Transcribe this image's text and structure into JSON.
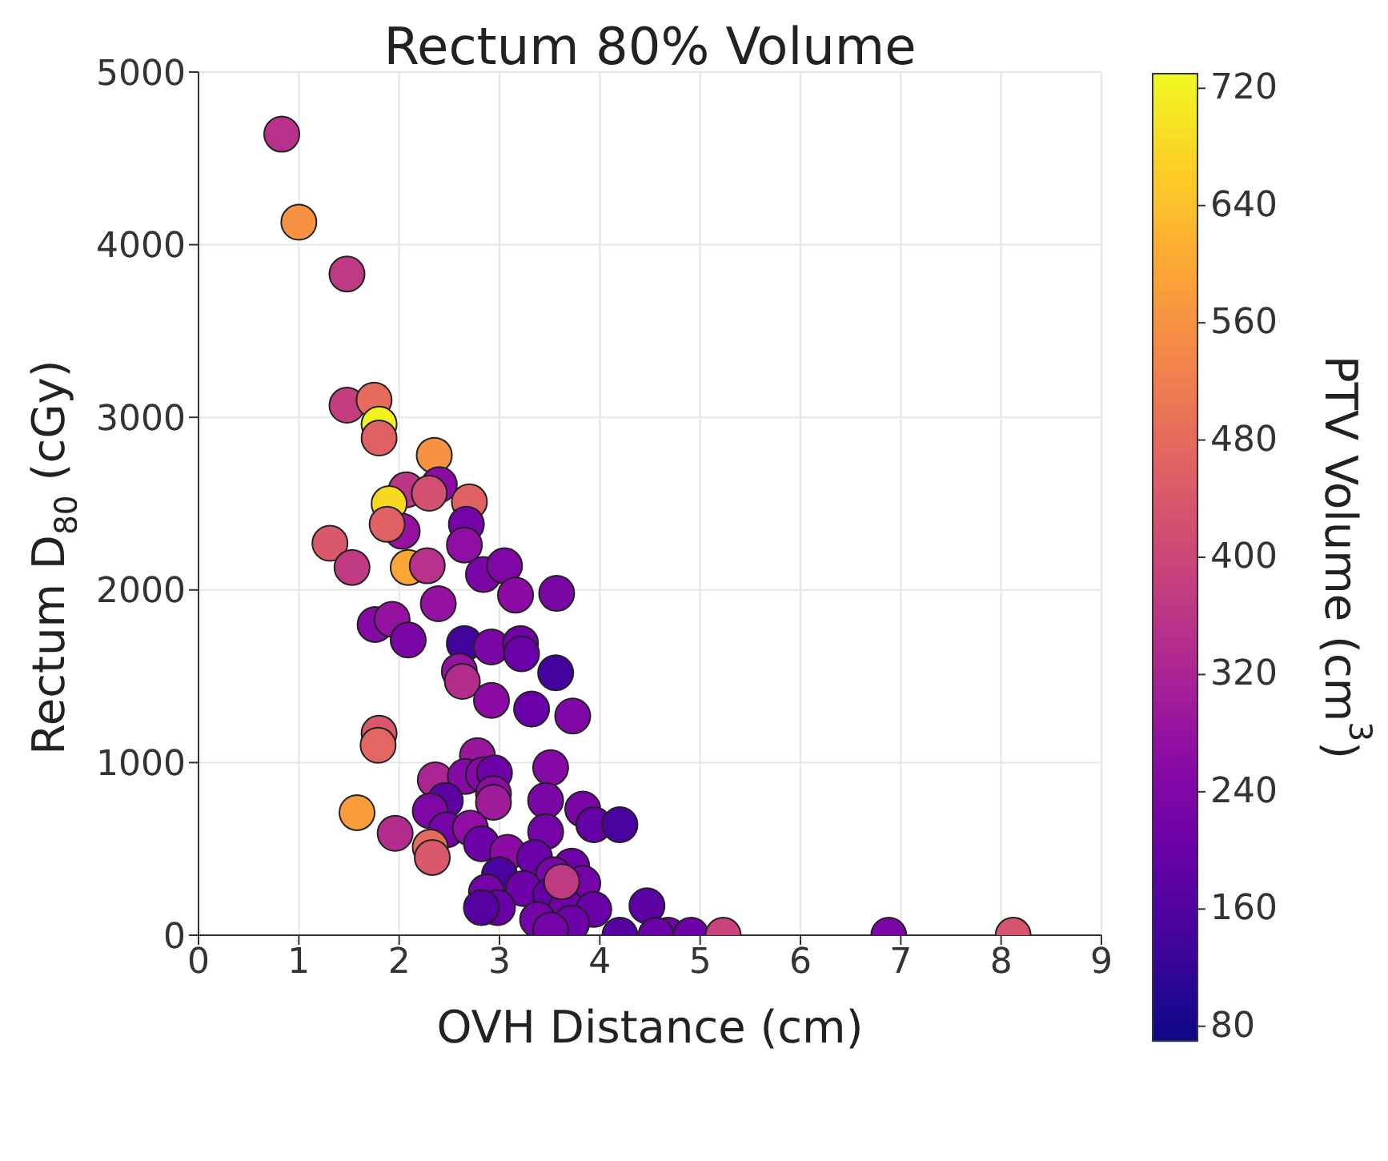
{
  "chart_data": {
    "type": "scatter",
    "title": "Rectum 80% Volume",
    "xlabel": "OVH Distance (cm)",
    "ylabel": "Rectum D$_{80}$ (cGy)",
    "clabel": "PTV Volume (cm$^{3}$)",
    "x": [
      0.83,
      1.0,
      1.48,
      1.48,
      1.75,
      1.8,
      1.8,
      2.35,
      2.4,
      2.07,
      2.3,
      2.7,
      1.9,
      2.03,
      1.88,
      2.67,
      2.65,
      1.31,
      1.53,
      2.09,
      2.28,
      2.84,
      3.05,
      3.16,
      3.57,
      2.39,
      1.76,
      1.93,
      2.09,
      2.65,
      2.92,
      3.21,
      3.22,
      3.56,
      2.6,
      2.63,
      2.92,
      3.32,
      3.73,
      1.8,
      1.79,
      2.78,
      3.51,
      2.36,
      2.66,
      2.84,
      2.95,
      2.94,
      2.94,
      3.46,
      2.46,
      2.31,
      1.58,
      3.83,
      3.94,
      4.2,
      1.96,
      2.47,
      2.71,
      3.46,
      2.31,
      2.33,
      2.82,
      3.08,
      3.35,
      3.0,
      3.72,
      3.54,
      2.87,
      3.24,
      3.83,
      2.98,
      2.82,
      3.51,
      3.67,
      3.94,
      3.38,
      3.72,
      3.51,
      4.47,
      4.2,
      4.68,
      4.56,
      4.91,
      5.23,
      6.88,
      8.12,
      3.62
    ],
    "values": [
      4640,
      4130,
      3830,
      3070,
      3100,
      2960,
      2880,
      2780,
      2610,
      2580,
      2560,
      2510,
      2500,
      2340,
      2380,
      2380,
      2260,
      2270,
      2130,
      2130,
      2140,
      2090,
      2140,
      1970,
      1980,
      1920,
      1800,
      1830,
      1710,
      1690,
      1670,
      1690,
      1630,
      1520,
      1530,
      1470,
      1360,
      1310,
      1270,
      1170,
      1100,
      1040,
      970,
      900,
      920,
      930,
      940,
      820,
      770,
      780,
      780,
      720,
      710,
      730,
      640,
      640,
      590,
      610,
      620,
      600,
      510,
      450,
      530,
      480,
      450,
      350,
      400,
      350,
      250,
      270,
      300,
      160,
      160,
      230,
      160,
      150,
      90,
      70,
      30,
      170,
      0,
      0,
      0,
      0,
      0,
      0,
      0,
      310
    ],
    "cvalues": [
      350,
      560,
      370,
      380,
      480,
      720,
      460,
      560,
      260,
      360,
      420,
      460,
      680,
      280,
      460,
      220,
      270,
      440,
      370,
      600,
      350,
      230,
      240,
      260,
      230,
      280,
      250,
      280,
      230,
      140,
      230,
      210,
      200,
      140,
      280,
      340,
      260,
      200,
      240,
      440,
      470,
      290,
      250,
      320,
      250,
      250,
      210,
      260,
      300,
      230,
      180,
      240,
      580,
      230,
      190,
      150,
      340,
      220,
      270,
      220,
      480,
      440,
      210,
      260,
      200,
      150,
      210,
      230,
      220,
      210,
      220,
      200,
      170,
      190,
      210,
      200,
      220,
      210,
      220,
      180,
      170,
      220,
      200,
      210,
      390,
      230,
      430,
      370
    ],
    "xlim": [
      0,
      9
    ],
    "xticks": [
      0,
      1,
      2,
      3,
      4,
      5,
      6,
      7,
      8,
      9
    ],
    "ylim": [
      0,
      5000
    ],
    "yticks": [
      0,
      1000,
      2000,
      3000,
      4000,
      5000
    ],
    "clim": [
      70,
      730
    ],
    "cticks": [
      80,
      160,
      240,
      320,
      400,
      480,
      560,
      640,
      720
    ],
    "grid": true,
    "marker": "circle"
  }
}
